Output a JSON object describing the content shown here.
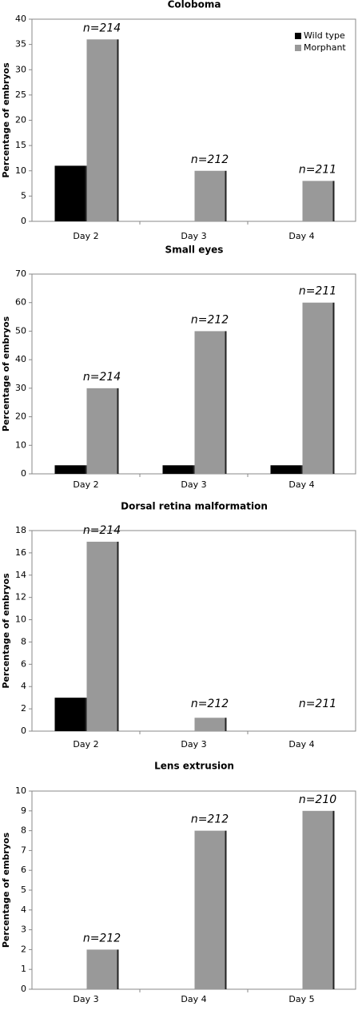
{
  "chart_data": [
    {
      "type": "bar",
      "title": "Coloboma",
      "y_label": "Percentage of embryos",
      "categories": [
        "Day 2",
        "Day 3",
        "Day 4"
      ],
      "series": [
        {
          "name": "Wild type",
          "color": "#000000",
          "values": [
            11,
            0,
            0
          ]
        },
        {
          "name": "Morphant",
          "color": "#999999",
          "values": [
            36,
            10,
            8
          ]
        }
      ],
      "annotations": [
        "n=214",
        "n=212",
        "n=211"
      ],
      "ylim": [
        0,
        40
      ],
      "yticks": [
        0,
        5,
        10,
        15,
        20,
        25,
        30,
        35,
        40
      ],
      "legend": "upper right"
    },
    {
      "type": "bar",
      "title": "Small eyes",
      "y_label": "Percentage of embryos",
      "categories": [
        "Day 2",
        "Day 3",
        "Day 4"
      ],
      "series": [
        {
          "name": "Wild type",
          "color": "#000000",
          "values": [
            3,
            3,
            3
          ]
        },
        {
          "name": "Morphant",
          "color": "#999999",
          "values": [
            30,
            50,
            60
          ]
        }
      ],
      "annotations": [
        "n=214",
        "n=212",
        "n=211"
      ],
      "ylim": [
        0,
        70
      ],
      "yticks": [
        0,
        10,
        20,
        30,
        40,
        50,
        60,
        70
      ]
    },
    {
      "type": "bar",
      "title": "Dorsal retina malformation",
      "y_label": "Percentage of embryos",
      "categories": [
        "Day 2",
        "Day 3",
        "Day 4"
      ],
      "series": [
        {
          "name": "Wild type",
          "color": "#000000",
          "values": [
            3,
            0,
            0
          ]
        },
        {
          "name": "Morphant",
          "color": "#999999",
          "values": [
            17,
            1.2,
            0
          ]
        }
      ],
      "annotations": [
        "n=214",
        "n=212",
        "n=211"
      ],
      "ylim": [
        0,
        18
      ],
      "yticks": [
        0,
        2,
        4,
        6,
        8,
        10,
        12,
        14,
        16,
        18
      ]
    },
    {
      "type": "bar",
      "title": "Lens extrusion",
      "y_label": "Percentage of embryos",
      "categories": [
        "Day 3",
        "Day 4",
        "Day 5"
      ],
      "series": [
        {
          "name": "Wild type",
          "color": "#000000",
          "values": [
            0,
            0,
            0
          ]
        },
        {
          "name": "Morphant",
          "color": "#999999",
          "values": [
            2,
            8,
            9
          ]
        }
      ],
      "annotations": [
        "n=212",
        "n=212",
        "n=210"
      ],
      "ylim": [
        0,
        10
      ],
      "yticks": [
        0,
        1,
        2,
        3,
        4,
        5,
        6,
        7,
        8,
        9,
        10
      ]
    }
  ]
}
